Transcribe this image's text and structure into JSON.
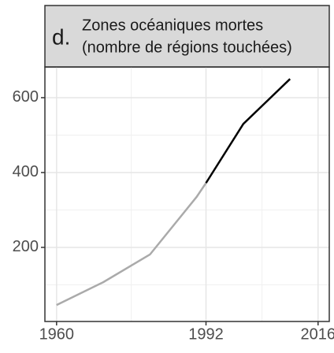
{
  "chart_data": {
    "type": "line",
    "panel_label": "d.",
    "title": [
      "Zones océaniques mortes",
      "(nombre de régions touchées)"
    ],
    "series": [
      {
        "color": "#aaaaaa",
        "x": [
          1960,
          1970,
          1980,
          1990,
          1992
        ],
        "values": [
          46,
          107,
          181,
          335,
          372
        ]
      },
      {
        "color": "#000000",
        "x": [
          1992,
          2000,
          2010
        ],
        "values": [
          372,
          530,
          650
        ]
      }
    ],
    "xlim": [
      1957.5,
      2018.4
    ],
    "xticks": [
      1960,
      1992,
      2016
    ],
    "xminor": [
      1976,
      2004
    ],
    "ylim": [
      2,
      682
    ],
    "yticks": [
      200,
      400,
      600
    ],
    "yminor": [
      100,
      300,
      500
    ],
    "grid": true
  }
}
